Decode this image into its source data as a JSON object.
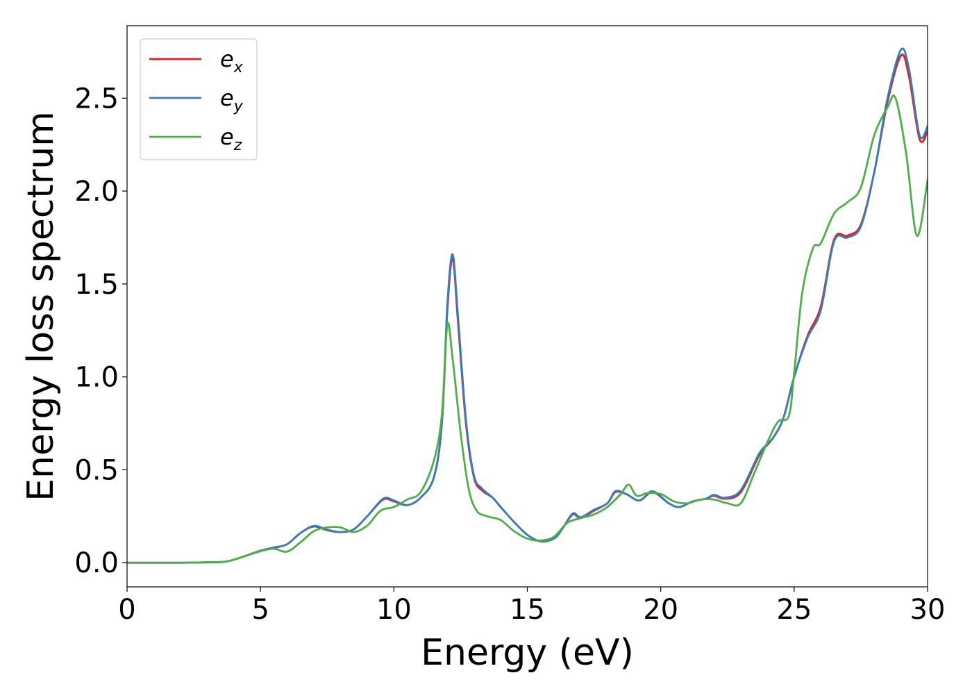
{
  "chart_data": {
    "type": "line",
    "title": "",
    "xlabel": "Energy (eV)",
    "ylabel": "Energy loss spectrum",
    "xlim": [
      0,
      30
    ],
    "ylim": [
      -0.13,
      2.89
    ],
    "xticks": [
      0,
      5,
      10,
      15,
      20,
      25,
      30
    ],
    "xtick_labels": [
      "0",
      "5",
      "10",
      "15",
      "20",
      "25",
      "30"
    ],
    "yticks": [
      0.0,
      0.5,
      1.0,
      1.5,
      2.0,
      2.5
    ],
    "ytick_labels": [
      "0.0",
      "0.5",
      "1.0",
      "1.5",
      "2.0",
      "2.5"
    ],
    "grid": false,
    "legend": {
      "position": "top-left",
      "entries": [
        {
          "base": "e",
          "sub": "x",
          "color": "#e41a1c"
        },
        {
          "base": "e",
          "sub": "y",
          "color": "#377eb8"
        },
        {
          "base": "e",
          "sub": "z",
          "color": "#4daf4a"
        }
      ]
    },
    "series": [
      {
        "name": "e_x",
        "color": "#e41a1c",
        "x": [
          0,
          1,
          2,
          3,
          3.7,
          4.3,
          5.0,
          5.5,
          6.0,
          6.5,
          7.0,
          7.5,
          8.0,
          8.5,
          9.0,
          9.6,
          10.0,
          10.5,
          11.0,
          11.5,
          11.8,
          12.0,
          12.2,
          12.4,
          12.7,
          13.0,
          13.3,
          13.7,
          14.0,
          14.5,
          15.0,
          15.5,
          16.0,
          16.3,
          16.7,
          17.0,
          17.5,
          18.0,
          18.3,
          18.7,
          19.2,
          19.7,
          20.3,
          20.7,
          21.2,
          21.7,
          22.0,
          22.4,
          23.0,
          23.7,
          24.2,
          24.6,
          25.0,
          25.5,
          26.0,
          26.5,
          27.0,
          27.5,
          28.0,
          28.5,
          29.0,
          29.3,
          29.7,
          30.0
        ],
        "y": [
          0.0,
          0.0,
          0.0,
          0.002,
          0.006,
          0.03,
          0.065,
          0.08,
          0.1,
          0.16,
          0.195,
          0.175,
          0.165,
          0.18,
          0.25,
          0.34,
          0.33,
          0.31,
          0.35,
          0.46,
          0.75,
          1.35,
          1.64,
          1.3,
          0.75,
          0.46,
          0.39,
          0.35,
          0.3,
          0.22,
          0.15,
          0.115,
          0.13,
          0.18,
          0.26,
          0.24,
          0.28,
          0.32,
          0.38,
          0.37,
          0.335,
          0.38,
          0.32,
          0.3,
          0.33,
          0.345,
          0.36,
          0.345,
          0.38,
          0.58,
          0.67,
          0.78,
          1.0,
          1.22,
          1.38,
          1.74,
          1.76,
          1.82,
          2.1,
          2.48,
          2.73,
          2.62,
          2.28,
          2.32
        ]
      },
      {
        "name": "e_y",
        "color": "#377eb8",
        "x": [
          0,
          1,
          2,
          3,
          3.7,
          4.3,
          5.0,
          5.5,
          6.0,
          6.5,
          7.0,
          7.5,
          8.0,
          8.5,
          9.0,
          9.6,
          10.0,
          10.5,
          11.0,
          11.5,
          11.8,
          12.0,
          12.2,
          12.4,
          12.7,
          13.0,
          13.3,
          13.7,
          14.0,
          14.5,
          15.0,
          15.5,
          16.0,
          16.3,
          16.7,
          17.0,
          17.5,
          18.0,
          18.3,
          18.7,
          19.2,
          19.7,
          20.3,
          20.7,
          21.2,
          21.7,
          22.0,
          22.4,
          23.0,
          23.7,
          24.2,
          24.6,
          25.0,
          25.5,
          26.0,
          26.5,
          27.0,
          27.5,
          28.0,
          28.5,
          29.0,
          29.3,
          29.7,
          30.0
        ],
        "y": [
          0.0,
          0.0,
          0.0,
          0.002,
          0.006,
          0.03,
          0.065,
          0.082,
          0.1,
          0.16,
          0.198,
          0.178,
          0.165,
          0.18,
          0.25,
          0.345,
          0.335,
          0.31,
          0.35,
          0.46,
          0.76,
          1.38,
          1.66,
          1.33,
          0.77,
          0.47,
          0.4,
          0.35,
          0.3,
          0.22,
          0.15,
          0.115,
          0.13,
          0.18,
          0.265,
          0.245,
          0.285,
          0.32,
          0.385,
          0.37,
          0.335,
          0.385,
          0.32,
          0.3,
          0.33,
          0.345,
          0.365,
          0.35,
          0.39,
          0.59,
          0.67,
          0.78,
          1.0,
          1.21,
          1.36,
          1.73,
          1.75,
          1.81,
          2.1,
          2.5,
          2.76,
          2.66,
          2.3,
          2.35
        ]
      },
      {
        "name": "e_z",
        "color": "#4daf4a",
        "x": [
          0,
          1,
          2,
          3,
          3.7,
          4.3,
          5.0,
          5.5,
          6.0,
          6.5,
          7.0,
          7.5,
          8.0,
          8.5,
          9.0,
          9.5,
          10.0,
          10.5,
          11.0,
          11.5,
          11.8,
          12.0,
          12.2,
          12.5,
          12.8,
          13.1,
          13.5,
          14.0,
          14.5,
          15.0,
          15.5,
          16.0,
          16.5,
          17.0,
          17.5,
          18.0,
          18.5,
          18.8,
          19.1,
          19.5,
          20.0,
          20.5,
          21.0,
          21.5,
          22.0,
          22.5,
          23.0,
          23.5,
          24.0,
          24.4,
          24.8,
          25.0,
          25.3,
          25.7,
          26.0,
          26.5,
          27.0,
          27.5,
          28.0,
          28.5,
          28.8,
          29.2,
          29.6,
          30.0
        ],
        "y": [
          0.0,
          0.0,
          0.0,
          0.002,
          0.006,
          0.03,
          0.062,
          0.075,
          0.06,
          0.11,
          0.17,
          0.19,
          0.19,
          0.165,
          0.2,
          0.28,
          0.3,
          0.34,
          0.38,
          0.55,
          0.8,
          1.28,
          1.1,
          0.7,
          0.4,
          0.28,
          0.25,
          0.23,
          0.17,
          0.13,
          0.12,
          0.14,
          0.215,
          0.24,
          0.26,
          0.3,
          0.37,
          0.42,
          0.36,
          0.375,
          0.37,
          0.33,
          0.32,
          0.34,
          0.34,
          0.32,
          0.32,
          0.48,
          0.65,
          0.76,
          0.79,
          1.02,
          1.45,
          1.69,
          1.72,
          1.88,
          1.94,
          2.02,
          2.3,
          2.45,
          2.5,
          2.2,
          1.76,
          2.06
        ]
      }
    ]
  }
}
